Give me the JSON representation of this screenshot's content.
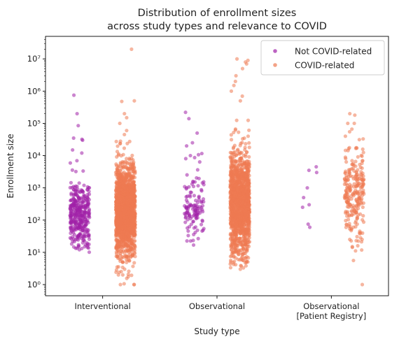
{
  "chart_data": {
    "type": "scatter",
    "subtype": "strip",
    "title": "Distribution of enrollment sizes\nacross study types and relevance to COVID",
    "title_lines": [
      "Distribution of enrollment sizes",
      "across study types and relevance to COVID"
    ],
    "xlabel": "Study type",
    "ylabel": "Enrollment size",
    "yscale": "log",
    "ylim": [
      0.45,
      50000000
    ],
    "categories": [
      "Interventional",
      "Observational",
      "Observational\n[Patient Registry]"
    ],
    "category_lines": [
      [
        "Interventional"
      ],
      [
        "Observational"
      ],
      [
        "Observational",
        "[Patient Registry]"
      ]
    ],
    "y_ticks": [
      {
        "value": 1,
        "label": "10⁰"
      },
      {
        "value": 10,
        "label": "10¹"
      },
      {
        "value": 100,
        "label": "10²"
      },
      {
        "value": 1000,
        "label": "10³"
      },
      {
        "value": 10000,
        "label": "10⁴"
      },
      {
        "value": 100000,
        "label": "10⁵"
      },
      {
        "value": 1000000,
        "label": "10⁶"
      },
      {
        "value": 10000000,
        "label": "10⁷"
      }
    ],
    "legend_position": "top-right",
    "series": [
      {
        "name": "Not COVID-related",
        "color": "#a020a8",
        "groups": [
          {
            "category": "Interventional",
            "count": 360,
            "median": 150,
            "sigma": 0.5,
            "min": 10,
            "max": 750000,
            "outliers": [
              750000,
              200000,
              85000,
              35000,
              32000,
              30000,
              15000,
              12000
            ]
          },
          {
            "category": "Observational",
            "count": 130,
            "median": 260,
            "sigma": 0.55,
            "min": 15,
            "max": 220000,
            "outliers": [
              220000,
              140000,
              50000,
              25000,
              20000,
              10000
            ]
          },
          {
            "category": "Observational\n[Patient Registry]",
            "count": 9,
            "median": 400,
            "sigma": 0.55,
            "min": 60,
            "max": 4500,
            "outliers": [
              4500,
              3500,
              3000,
              1000,
              500,
              300,
              250,
              75,
              60
            ]
          }
        ]
      },
      {
        "name": "COVID-related",
        "color": "#ee7a52",
        "groups": [
          {
            "category": "Interventional",
            "count": 1800,
            "median": 200,
            "sigma": 0.6,
            "min": 1,
            "max": 20000000,
            "outliers": [
              20000000,
              500000,
              480000,
              200000,
              150000,
              100000,
              60000,
              45000,
              1,
              1,
              1,
              2,
              2,
              3,
              5
            ]
          },
          {
            "category": "Observational",
            "count": 1500,
            "median": 300,
            "sigma": 0.7,
            "min": 3,
            "max": 10000000,
            "outliers": [
              10000000,
              9000000,
              8000000,
              7000000,
              5000000,
              3000000,
              2000000,
              1500000,
              1000000,
              700000,
              500000,
              3,
              5
            ]
          },
          {
            "category": "Observational\n[Patient Registry]",
            "count": 260,
            "median": 700,
            "sigma": 0.6,
            "min": 1,
            "max": 200000,
            "outliers": [
              200000,
              180000,
              100000,
              100000,
              55000,
              40000,
              1
            ]
          }
        ]
      }
    ]
  }
}
